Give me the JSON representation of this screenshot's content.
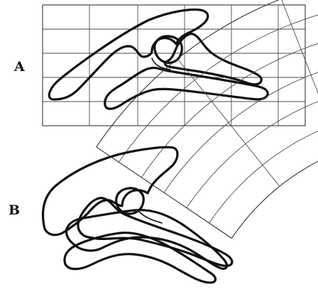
{
  "figure": {
    "panels": [
      {
        "label": "A",
        "grid": {
          "type": "rectilinear",
          "columns": 6,
          "rows": 5
        }
      },
      {
        "label": "B",
        "grid": {
          "type": "curvilinear",
          "columns": 6,
          "rows": 6
        }
      }
    ]
  }
}
